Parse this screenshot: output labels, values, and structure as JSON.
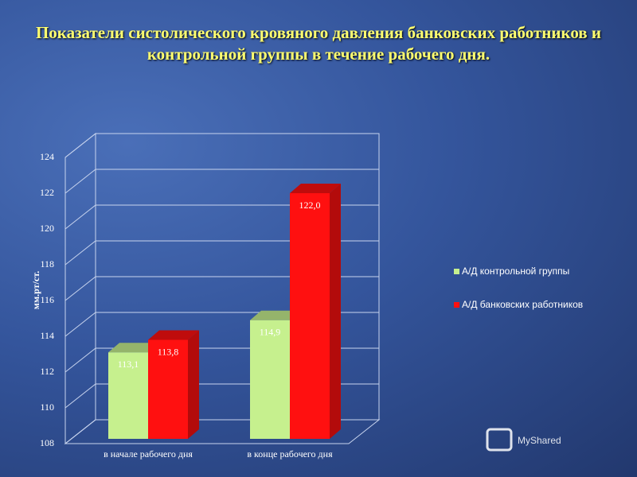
{
  "chart_data": {
    "type": "bar3d",
    "title": "Показатели систолического кровяного давления банковских работников и контрольной группы в течение рабочего дня.",
    "y_label": "мм.рт/ст.",
    "categories": [
      "в начале рабочего дня",
      "в конце рабочего дня"
    ],
    "series": [
      {
        "name": "А/Д контрольной группы",
        "color": "#c6f08e",
        "values": [
          113.1,
          114.9
        ],
        "value_labels": [
          "113,1",
          "114,9"
        ]
      },
      {
        "name": "А/Д банковских работников",
        "color": "#ff1010",
        "values": [
          113.8,
          122.0
        ],
        "value_labels": [
          "113,8",
          "122,0"
        ]
      }
    ],
    "ylim": [
      108,
      124
    ],
    "yticks": [
      108,
      110,
      112,
      114,
      116,
      118,
      120,
      122,
      124
    ],
    "grid": true,
    "watermark": "MyShared"
  }
}
